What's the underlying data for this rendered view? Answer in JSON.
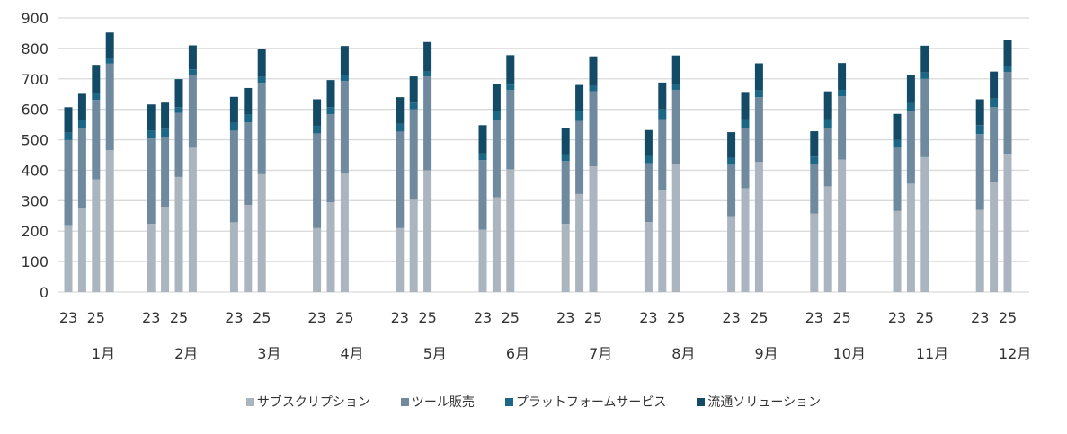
{
  "chart_data": {
    "type": "bar",
    "stacked": true,
    "title": "",
    "xlabel": "",
    "ylabel": "",
    "ylim": [
      0,
      900
    ],
    "yticks": [
      0,
      100,
      200,
      300,
      400,
      500,
      600,
      700,
      800,
      900
    ],
    "grid": true,
    "legend_position": "bottom",
    "series_names": [
      "サブスクリプション",
      "ツール販売",
      "プラットフォームサービス",
      "流通ソリューション"
    ],
    "colors": [
      "#aab5c0",
      "#6f8a9e",
      "#1d6786",
      "#134a66"
    ],
    "groups": [
      {
        "month": "1月",
        "bars": [
          {
            "year_label": "23",
            "values": [
              220,
              279,
              24,
              84
            ]
          },
          {
            "year_label": "",
            "values": [
              277,
              263,
              25,
              86
            ]
          },
          {
            "year_label": "25",
            "values": [
              370,
              261,
              23,
              92
            ]
          },
          {
            "year_label": "",
            "values": [
              466,
              284,
              20,
              82
            ]
          }
        ]
      },
      {
        "month": "2月",
        "bars": [
          {
            "year_label": "23",
            "values": [
              224,
              280,
              26,
              86
            ]
          },
          {
            "year_label": "",
            "values": [
              280,
              227,
              29,
              86
            ]
          },
          {
            "year_label": "25",
            "values": [
              378,
              210,
              19,
              92
            ]
          },
          {
            "year_label": "",
            "values": [
              474,
              237,
              20,
              79
            ]
          }
        ]
      },
      {
        "month": "3月",
        "bars": [
          {
            "year_label": "23",
            "values": [
              229,
              301,
              26,
              85
            ]
          },
          {
            "year_label": "",
            "values": [
              286,
              271,
              26,
              87
            ]
          },
          {
            "year_label": "25",
            "values": [
              387,
              300,
              19,
              93
            ]
          }
        ]
      },
      {
        "month": "4月",
        "bars": [
          {
            "year_label": "23",
            "values": [
              210,
              311,
              25,
              87
            ]
          },
          {
            "year_label": "",
            "values": [
              295,
              289,
              23,
              89
            ]
          },
          {
            "year_label": "25",
            "values": [
              390,
              303,
              21,
              94
            ]
          }
        ]
      },
      {
        "month": "5月",
        "bars": [
          {
            "year_label": "23",
            "values": [
              210,
              317,
              26,
              87
            ]
          },
          {
            "year_label": "",
            "values": [
              303,
              297,
              22,
              86
            ]
          },
          {
            "year_label": "25",
            "values": [
              400,
              308,
              16,
              97
            ]
          }
        ]
      },
      {
        "month": "6月",
        "bars": [
          {
            "year_label": "23",
            "values": [
              205,
              228,
              23,
              92
            ]
          },
          {
            "year_label": "",
            "values": [
              311,
              255,
              30,
              86
            ]
          },
          {
            "year_label": "25",
            "values": [
              403,
              261,
              17,
              97
            ]
          }
        ]
      },
      {
        "month": "7月",
        "bars": [
          {
            "year_label": "23",
            "values": [
              224,
              206,
              23,
              87
            ]
          },
          {
            "year_label": "",
            "values": [
              322,
              240,
              31,
              87
            ]
          },
          {
            "year_label": "25",
            "values": [
              413,
              246,
              18,
              97
            ]
          }
        ]
      },
      {
        "month": "8月",
        "bars": [
          {
            "year_label": "23",
            "values": [
              230,
              193,
              24,
              85
            ]
          },
          {
            "year_label": "",
            "values": [
              333,
              235,
              32,
              88
            ]
          },
          {
            "year_label": "25",
            "values": [
              420,
              244,
              20,
              93
            ]
          }
        ]
      },
      {
        "month": "9月",
        "bars": [
          {
            "year_label": "23",
            "values": [
              249,
              169,
              23,
              84
            ]
          },
          {
            "year_label": "",
            "values": [
              341,
              199,
              28,
              89
            ]
          },
          {
            "year_label": "25",
            "values": [
              427,
              213,
              22,
              89
            ]
          }
        ]
      },
      {
        "month": "10月",
        "bars": [
          {
            "year_label": "23",
            "values": [
              258,
              163,
              24,
              83
            ]
          },
          {
            "year_label": "",
            "values": [
              347,
              193,
              28,
              91
            ]
          },
          {
            "year_label": "25",
            "values": [
              435,
              208,
              21,
              88
            ]
          }
        ]
      },
      {
        "month": "11月",
        "bars": [
          {
            "year_label": "23",
            "values": [
              266,
              208,
              26,
              85
            ]
          },
          {
            "year_label": "",
            "values": [
              356,
              237,
              27,
              92
            ]
          },
          {
            "year_label": "25",
            "values": [
              443,
              257,
              21,
              88
            ]
          }
        ]
      },
      {
        "month": "12月",
        "bars": [
          {
            "year_label": "23",
            "values": [
              270,
              249,
              29,
              85
            ]
          },
          {
            "year_label": "",
            "values": [
              362,
              245,
              28,
              89
            ]
          },
          {
            "year_label": "25",
            "values": [
              454,
              269,
              20,
              85
            ]
          }
        ]
      }
    ]
  }
}
